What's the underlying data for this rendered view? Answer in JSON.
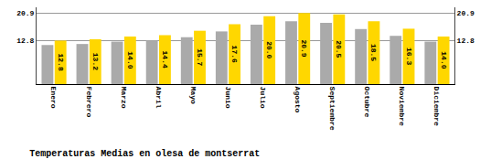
{
  "chart_data": {
    "type": "bar",
    "title": "Temperaturas Medias en olesa de montserrat",
    "categories": [
      "Enero",
      "Febrero",
      "Marzo",
      "Abril",
      "Mayo",
      "Junio",
      "Julio",
      "Agosto",
      "Septiembre",
      "Octubre",
      "Noviembre",
      "Diciembre"
    ],
    "series": [
      {
        "color": "#AAAAAA",
        "values": [
          11.5,
          11.8,
          12.5,
          12.8,
          13.8,
          15.5,
          17.5,
          18.5,
          18.0,
          16.2,
          14.2,
          12.5
        ]
      },
      {
        "color": "#FFD700",
        "values": [
          12.8,
          13.2,
          14.0,
          14.4,
          15.7,
          17.6,
          20.0,
          20.9,
          20.5,
          18.5,
          16.3,
          14.0
        ],
        "data_labels": true,
        "value_labels": [
          "12.8",
          "13.2",
          "14.0",
          "14.4",
          "15.7",
          "17.6",
          "20.0",
          "20.9",
          "20.5",
          "18.5",
          "16.3",
          "14.0"
        ]
      }
    ],
    "ylim": [
      0,
      22.6
    ],
    "yticks": [
      12.8,
      20.9
    ],
    "y2lim": [
      0,
      22.6
    ],
    "y2ticks": [
      12.8,
      20.9
    ],
    "grid": true
  }
}
